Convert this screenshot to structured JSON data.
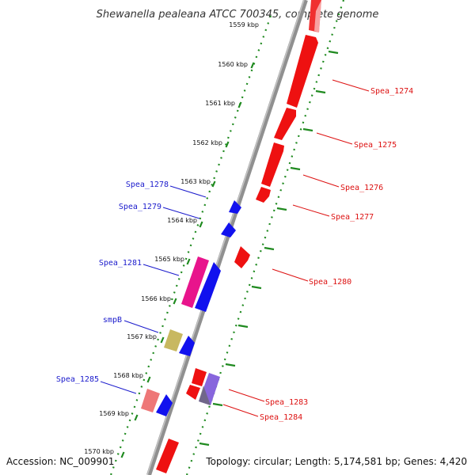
{
  "title": "Shewanella pealeana ATCC 700345, complete genome",
  "footer": {
    "accession": "Accession: NC_009901",
    "topology": "Topology: circular; Length: 5,174,581 bp; Genes: 4,420"
  },
  "colors": {
    "backbone": "#8c8c8c",
    "ruler": "#1f8a1f",
    "forward_label": "#1a1acc",
    "reverse_label": "#dd1111"
  },
  "kbp_ticks": [
    "1559 kbp",
    "1560 kbp",
    "1561 kbp",
    "1562 kbp",
    "1563 kbp",
    "1564 kbp",
    "1565 kbp",
    "1566 kbp",
    "1567 kbp",
    "1568 kbp",
    "1569 kbp",
    "1570 kbp"
  ],
  "gene_labels": [
    {
      "name": "Spea_1274",
      "strand": "reverse"
    },
    {
      "name": "Spea_1275",
      "strand": "reverse"
    },
    {
      "name": "Spea_1276",
      "strand": "reverse"
    },
    {
      "name": "Spea_1277",
      "strand": "reverse"
    },
    {
      "name": "Spea_1278",
      "strand": "forward"
    },
    {
      "name": "Spea_1279",
      "strand": "forward"
    },
    {
      "name": "Spea_1280",
      "strand": "reverse"
    },
    {
      "name": "Spea_1281",
      "strand": "forward"
    },
    {
      "name": "smpB",
      "strand": "forward"
    },
    {
      "name": "Spea_1283",
      "strand": "reverse"
    },
    {
      "name": "Spea_1284",
      "strand": "reverse"
    },
    {
      "name": "Spea_1285",
      "strand": "forward"
    }
  ],
  "features": [
    {
      "id": "rev-a",
      "color": "#ee1111"
    },
    {
      "id": "rev-b",
      "color": "#ee1111"
    },
    {
      "id": "rev-c",
      "color": "#ee1111"
    },
    {
      "id": "rev-d",
      "color": "#ee1111"
    },
    {
      "id": "rev-e",
      "color": "#ee1111"
    },
    {
      "id": "rev-f",
      "color": "#ee1111"
    },
    {
      "id": "fwd-a",
      "color": "#1111ee"
    },
    {
      "id": "fwd-b",
      "color": "#1111ee"
    },
    {
      "id": "mag-a",
      "color": "#e8148c"
    },
    {
      "id": "fwd-c",
      "color": "#1111ee"
    },
    {
      "id": "olive-a",
      "color": "#c8b860"
    },
    {
      "id": "fwd-d",
      "color": "#1111ee"
    },
    {
      "id": "rev-g",
      "color": "#ee1111"
    },
    {
      "id": "rev-h",
      "color": "#ee1111"
    },
    {
      "id": "purple-a",
      "color": "#8866dd"
    },
    {
      "id": "pink-a",
      "color": "#ee7777"
    },
    {
      "id": "fwd-e",
      "color": "#1111ee"
    },
    {
      "id": "rev-i",
      "color": "#ee1111"
    }
  ]
}
